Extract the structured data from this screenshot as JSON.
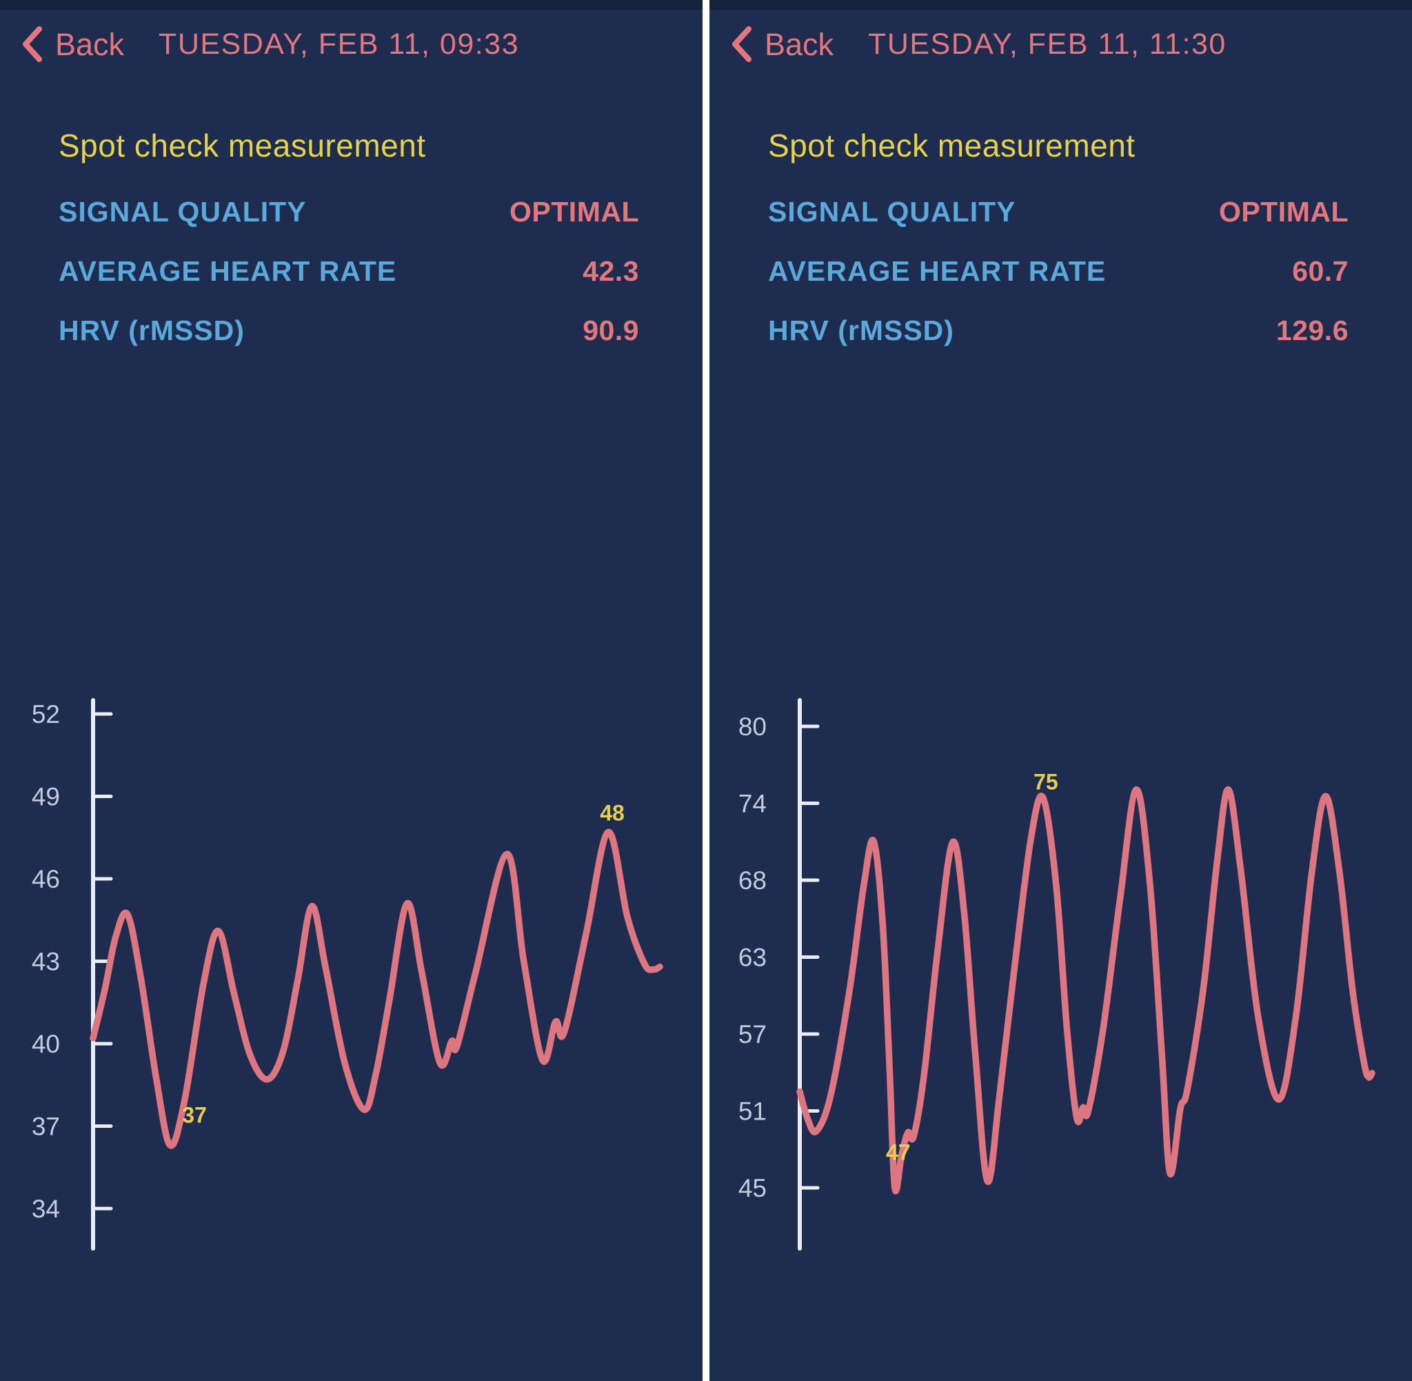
{
  "colors": {
    "background": "#1d2c4f",
    "status_strip": "#16213c",
    "divider": "#fffef8",
    "accent_salmon": "#e4767e",
    "accent_yellow": "#e7d24c",
    "accent_blue": "#5ba8da",
    "axis": "#e9edf5",
    "tick_label": "#c4cbdb",
    "line": "#dd7680",
    "annotation": "#e6cf4e"
  },
  "panels": [
    {
      "header": {
        "back_label": "Back",
        "title": "TUESDAY, FEB 11, 09:33"
      },
      "section_title": "Spot check measurement",
      "metrics": [
        {
          "label": "SIGNAL QUALITY",
          "value": "OPTIMAL"
        },
        {
          "label": "AVERAGE HEART RATE",
          "value": "42.3"
        },
        {
          "label": "HRV (rMSSD)",
          "value": "90.9"
        }
      ]
    },
    {
      "header": {
        "back_label": "Back",
        "title": "TUESDAY, FEB 11, 11:30"
      },
      "section_title": "Spot check measurement",
      "metrics": [
        {
          "label": "SIGNAL QUALITY",
          "value": "OPTIMAL"
        },
        {
          "label": "AVERAGE HEART RATE",
          "value": "60.7"
        },
        {
          "label": "HRV (rMSSD)",
          "value": "129.6"
        }
      ]
    }
  ],
  "chart_data": [
    {
      "type": "line",
      "unit": "bpm",
      "yticks": [
        52,
        49,
        46,
        43,
        40,
        37,
        34
      ],
      "ylim": [
        33,
        53
      ],
      "grid": false,
      "legend": "none",
      "line_color": "#dd7680",
      "annotation_color": "#e6cf4e",
      "points": [
        [
          0.0,
          40.2
        ],
        [
          0.021,
          42.0
        ],
        [
          0.04,
          43.9
        ],
        [
          0.061,
          44.7
        ],
        [
          0.085,
          42.3
        ],
        [
          0.111,
          38.8
        ],
        [
          0.136,
          36.3
        ],
        [
          0.162,
          38.0
        ],
        [
          0.195,
          42.2
        ],
        [
          0.221,
          44.1
        ],
        [
          0.249,
          41.8
        ],
        [
          0.277,
          39.6
        ],
        [
          0.307,
          38.7
        ],
        [
          0.335,
          39.7
        ],
        [
          0.361,
          42.3
        ],
        [
          0.386,
          45.0
        ],
        [
          0.41,
          42.8
        ],
        [
          0.444,
          39.3
        ],
        [
          0.478,
          37.6
        ],
        [
          0.499,
          38.9
        ],
        [
          0.523,
          41.6
        ],
        [
          0.554,
          45.1
        ],
        [
          0.58,
          42.6
        ],
        [
          0.612,
          39.3
        ],
        [
          0.633,
          40.1
        ],
        [
          0.642,
          39.9
        ],
        [
          0.675,
          42.6
        ],
        [
          0.73,
          46.9
        ],
        [
          0.76,
          43.0
        ],
        [
          0.793,
          39.4
        ],
        [
          0.816,
          40.8
        ],
        [
          0.831,
          40.4
        ],
        [
          0.87,
          44.0
        ],
        [
          0.909,
          47.7
        ],
        [
          0.943,
          44.6
        ],
        [
          0.973,
          42.9
        ],
        [
          0.989,
          42.7
        ],
        [
          1.0,
          42.8
        ]
      ],
      "annotations": [
        {
          "text": "37",
          "x": 0.179,
          "y": 37.4
        },
        {
          "text": "48",
          "x": 0.916,
          "y": 48.4
        }
      ]
    },
    {
      "type": "line",
      "unit": "bpm",
      "yticks": [
        80,
        74,
        68,
        63,
        57,
        51,
        45
      ],
      "ylim": [
        44,
        81
      ],
      "grid": false,
      "legend": "none",
      "line_color": "#dd7680",
      "annotation_color": "#e6cf4e",
      "points": [
        [
          0.0,
          52.3
        ],
        [
          0.014,
          50.2
        ],
        [
          0.029,
          49.3
        ],
        [
          0.054,
          52.0
        ],
        [
          0.087,
          60.0
        ],
        [
          0.112,
          68.0
        ],
        [
          0.129,
          71.3
        ],
        [
          0.145,
          65.0
        ],
        [
          0.157,
          54.0
        ],
        [
          0.166,
          45.0
        ],
        [
          0.178,
          47.5
        ],
        [
          0.189,
          49.2
        ],
        [
          0.199,
          48.9
        ],
        [
          0.217,
          53.5
        ],
        [
          0.241,
          63.0
        ],
        [
          0.267,
          71.2
        ],
        [
          0.287,
          66.0
        ],
        [
          0.307,
          55.0
        ],
        [
          0.328,
          45.5
        ],
        [
          0.349,
          52.0
        ],
        [
          0.376,
          62.0
        ],
        [
          0.404,
          71.5
        ],
        [
          0.425,
          74.6
        ],
        [
          0.448,
          68.0
        ],
        [
          0.467,
          57.0
        ],
        [
          0.484,
          50.3
        ],
        [
          0.495,
          51.1
        ],
        [
          0.504,
          50.8
        ],
        [
          0.53,
          57.0
        ],
        [
          0.56,
          67.0
        ],
        [
          0.588,
          75.2
        ],
        [
          0.612,
          68.0
        ],
        [
          0.633,
          55.0
        ],
        [
          0.647,
          46.1
        ],
        [
          0.665,
          51.0
        ],
        [
          0.677,
          52.4
        ],
        [
          0.705,
          60.0
        ],
        [
          0.73,
          70.0
        ],
        [
          0.749,
          75.2
        ],
        [
          0.771,
          69.0
        ],
        [
          0.801,
          58.0
        ],
        [
          0.837,
          51.7
        ],
        [
          0.867,
          58.0
        ],
        [
          0.895,
          69.0
        ],
        [
          0.919,
          74.7
        ],
        [
          0.943,
          69.0
        ],
        [
          0.966,
          60.0
        ],
        [
          0.986,
          54.5
        ],
        [
          0.994,
          53.4
        ],
        [
          1.0,
          53.7
        ]
      ],
      "annotations": [
        {
          "text": "47",
          "x": 0.172,
          "y": 47.7
        },
        {
          "text": "75",
          "x": 0.43,
          "y": 75.8
        }
      ]
    }
  ]
}
